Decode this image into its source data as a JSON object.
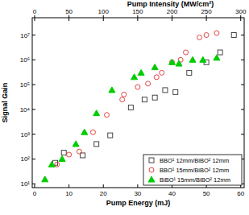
{
  "chart_data": {
    "type": "scatter",
    "xlabel": "Pump Energy (mJ)",
    "ylabel": "Signal Gain",
    "x2label": "Pump Intensity (MW/cm²)",
    "log": "y",
    "legend": "lower right",
    "xlim": [
      -0.7,
      61
    ],
    "xticks": [
      0,
      10,
      20,
      30,
      40,
      50,
      60
    ],
    "x2lim": [
      -3.5,
      305
    ],
    "x2ticks": [
      0,
      50,
      100,
      150,
      200,
      250,
      300
    ],
    "ylim": [
      7,
      50000000
    ],
    "yticks": [
      {
        "value": 10,
        "label": "10¹"
      },
      {
        "value": 100,
        "label": "10²"
      },
      {
        "value": 1000,
        "label": "10³"
      },
      {
        "value": 10000,
        "label": "10⁴"
      },
      {
        "value": 100000,
        "label": "10⁵"
      },
      {
        "value": 1000000,
        "label": "10⁶"
      },
      {
        "value": 10000000,
        "label": "10⁷"
      }
    ],
    "series": [
      {
        "name": "BBO¹ 12mm/BiBO² 12mm",
        "color": "#333333",
        "marker": "square",
        "x": [
          6,
          8.5,
          14,
          18,
          22,
          28,
          32,
          35,
          38,
          41,
          45,
          50,
          54,
          58
        ],
        "values": [
          70,
          180,
          140,
          400,
          900,
          12000,
          25000,
          30000,
          60000,
          50000,
          300000,
          800000,
          2000000,
          10000000
        ]
      },
      {
        "name": "BBO¹ 15mm/BiBO² 12mm",
        "color": "#e03030",
        "marker": "circle",
        "x": [
          6.5,
          10,
          13,
          17,
          21,
          25.5,
          26,
          30,
          33,
          35.5,
          37,
          40,
          42.5,
          44,
          48,
          50,
          53
        ],
        "values": [
          60,
          150,
          200,
          1200,
          6000,
          25000,
          40000,
          80000,
          110000,
          200000,
          300000,
          800000,
          1000000,
          2000000,
          8000000,
          10000000,
          12000000
        ]
      },
      {
        "name": "BiBO¹ 15mm/BiBO² 12mm",
        "color": "#00cc00",
        "marker": "triangle",
        "x": [
          3,
          5,
          8,
          12,
          14.5,
          18,
          22.5,
          29,
          31,
          35,
          40,
          42,
          46,
          49,
          53
        ],
        "values": [
          15,
          60,
          100,
          400,
          1200,
          7000,
          60000,
          200000,
          300000,
          500000,
          800000,
          700000,
          1000000,
          1000000,
          1200000
        ]
      }
    ]
  }
}
